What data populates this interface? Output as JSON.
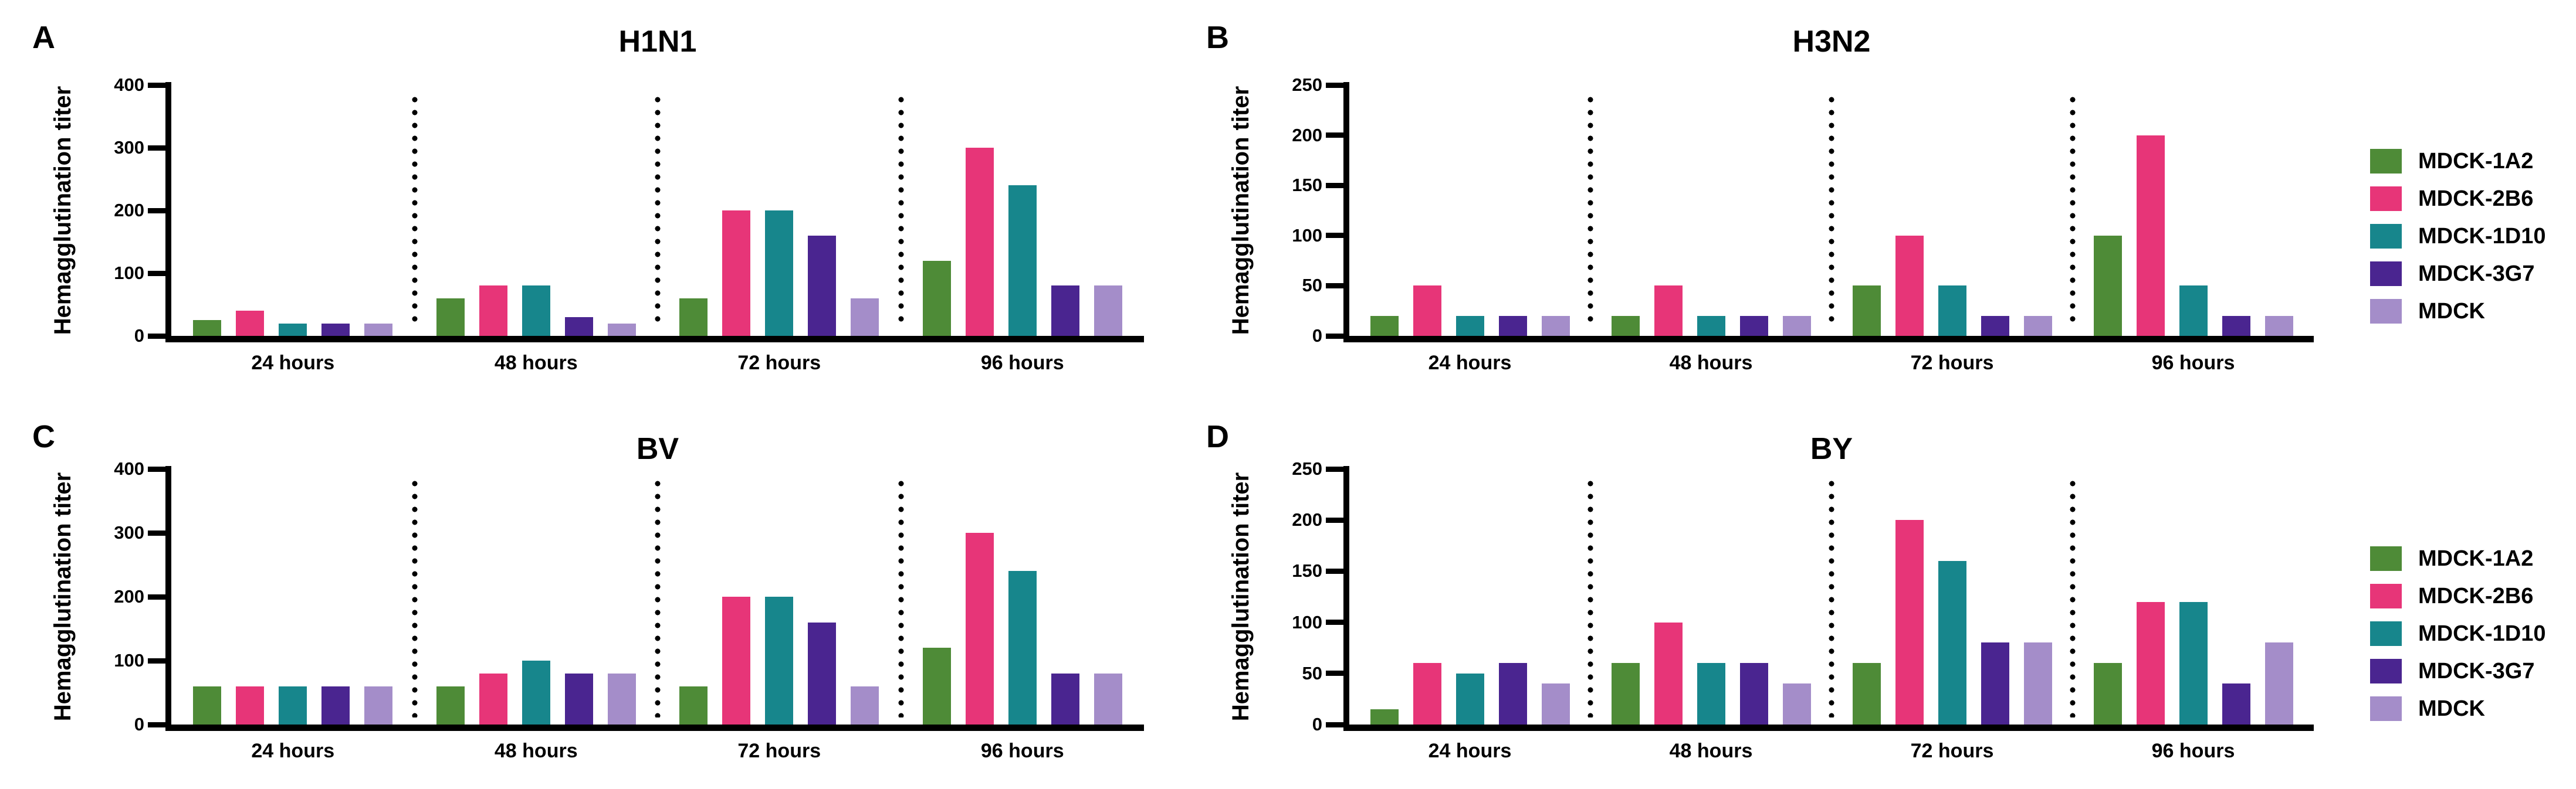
{
  "figure": {
    "background": "#FFFFFF",
    "axis_color": "#000000",
    "legend_items": [
      {
        "label": "MDCK-1A2",
        "color": "#4E8B37"
      },
      {
        "label": "MDCK-2B6",
        "color": "#E73578"
      },
      {
        "label": "MDCK-1D10",
        "color": "#17868C"
      },
      {
        "label": "MDCK-3G7",
        "color": "#4A2590"
      },
      {
        "label": "MDCK",
        "color": "#A48DC9"
      }
    ]
  },
  "chart_data": [
    {
      "panel_letter": "A",
      "type": "bar",
      "title": "H1N1",
      "ylabel": "Hemagglutination titer",
      "xlabel": "",
      "ylim": [
        0,
        400
      ],
      "yticks": [
        0,
        100,
        200,
        300,
        400
      ],
      "grid": false,
      "legend_position": "right-outside",
      "categories": [
        "24 hours",
        "48 hours",
        "72 hours",
        "96 hours"
      ],
      "series": [
        {
          "name": "MDCK-1A2",
          "color": "#4E8B37",
          "values": [
            25,
            60,
            60,
            120
          ]
        },
        {
          "name": "MDCK-2B6",
          "color": "#E73578",
          "values": [
            40,
            80,
            200,
            300
          ]
        },
        {
          "name": "MDCK-1D10",
          "color": "#17868C",
          "values": [
            20,
            80,
            200,
            240
          ]
        },
        {
          "name": "MDCK-3G7",
          "color": "#4A2590",
          "values": [
            20,
            30,
            160,
            80
          ]
        },
        {
          "name": "MDCK",
          "color": "#A48DC9",
          "values": [
            20,
            20,
            60,
            80
          ]
        }
      ]
    },
    {
      "panel_letter": "B",
      "type": "bar",
      "title": "H3N2",
      "ylabel": "Hemagglutination titer",
      "xlabel": "",
      "ylim": [
        0,
        250
      ],
      "yticks": [
        0,
        50,
        100,
        150,
        200,
        250
      ],
      "grid": false,
      "legend_position": "right-outside",
      "categories": [
        "24 hours",
        "48 hours",
        "72 hours",
        "96 hours"
      ],
      "series": [
        {
          "name": "MDCK-1A2",
          "color": "#4E8B37",
          "values": [
            20,
            20,
            50,
            100
          ]
        },
        {
          "name": "MDCK-2B6",
          "color": "#E73578",
          "values": [
            50,
            50,
            100,
            200
          ]
        },
        {
          "name": "MDCK-1D10",
          "color": "#17868C",
          "values": [
            20,
            20,
            50,
            50
          ]
        },
        {
          "name": "MDCK-3G7",
          "color": "#4A2590",
          "values": [
            20,
            20,
            20,
            20
          ]
        },
        {
          "name": "MDCK",
          "color": "#A48DC9",
          "values": [
            20,
            20,
            20,
            20
          ]
        }
      ]
    },
    {
      "panel_letter": "C",
      "type": "bar",
      "title": "BV",
      "ylabel": "Hemagglutination titer",
      "xlabel": "",
      "ylim": [
        0,
        400
      ],
      "yticks": [
        0,
        100,
        200,
        300,
        400
      ],
      "grid": false,
      "legend_position": "right-outside",
      "categories": [
        "24 hours",
        "48 hours",
        "72 hours",
        "96 hours"
      ],
      "series": [
        {
          "name": "MDCK-1A2",
          "color": "#4E8B37",
          "values": [
            60,
            60,
            60,
            120
          ]
        },
        {
          "name": "MDCK-2B6",
          "color": "#E73578",
          "values": [
            60,
            80,
            200,
            300
          ]
        },
        {
          "name": "MDCK-1D10",
          "color": "#17868C",
          "values": [
            60,
            100,
            200,
            240
          ]
        },
        {
          "name": "MDCK-3G7",
          "color": "#4A2590",
          "values": [
            60,
            80,
            160,
            80
          ]
        },
        {
          "name": "MDCK",
          "color": "#A48DC9",
          "values": [
            60,
            80,
            60,
            80
          ]
        }
      ]
    },
    {
      "panel_letter": "D",
      "type": "bar",
      "title": "BY",
      "ylabel": "Hemagglutination titer",
      "xlabel": "",
      "ylim": [
        0,
        250
      ],
      "yticks": [
        0,
        50,
        100,
        150,
        200,
        250
      ],
      "grid": false,
      "legend_position": "right-outside",
      "categories": [
        "24 hours",
        "48 hours",
        "72 hours",
        "96 hours"
      ],
      "series": [
        {
          "name": "MDCK-1A2",
          "color": "#4E8B37",
          "values": [
            15,
            60,
            60,
            60
          ]
        },
        {
          "name": "MDCK-2B6",
          "color": "#E73578",
          "values": [
            60,
            100,
            200,
            120
          ]
        },
        {
          "name": "MDCK-1D10",
          "color": "#17868C",
          "values": [
            50,
            60,
            160,
            120
          ]
        },
        {
          "name": "MDCK-3G7",
          "color": "#4A2590",
          "values": [
            60,
            60,
            80,
            40
          ]
        },
        {
          "name": "MDCK",
          "color": "#A48DC9",
          "values": [
            40,
            40,
            80,
            80
          ]
        }
      ]
    }
  ]
}
